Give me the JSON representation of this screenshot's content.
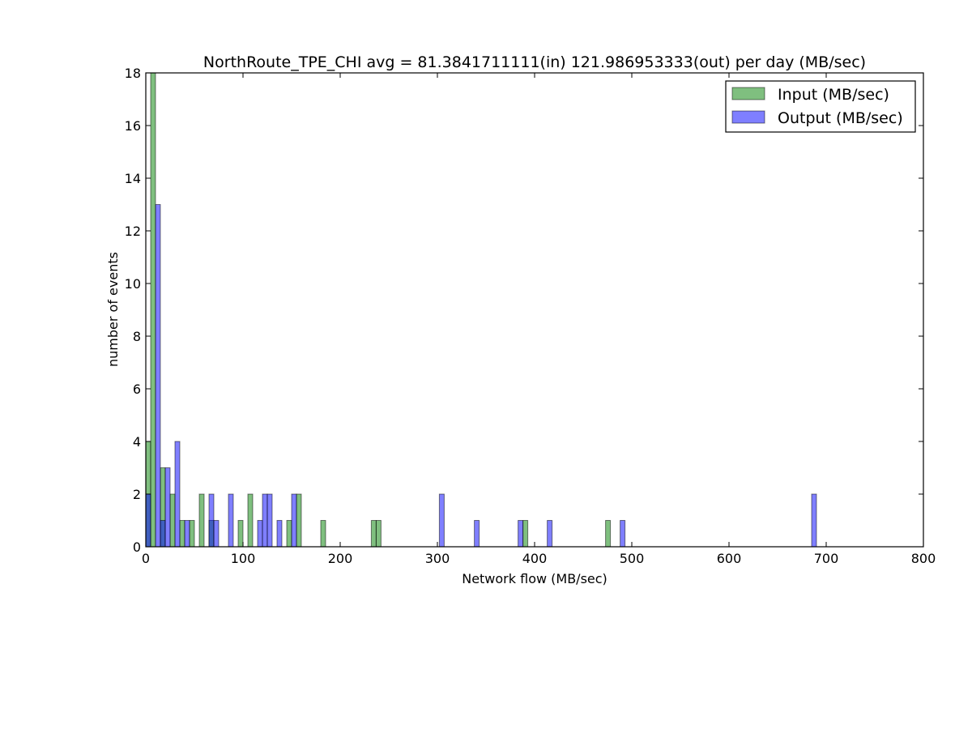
{
  "chart_data": {
    "type": "bar",
    "title": "NorthRoute_TPE_CHI avg = 81.3841711111(in) 121.986953333(out) per day (MB/sec)",
    "xlabel": "Network flow (MB/sec)",
    "ylabel": "number of events",
    "xlim": [
      0,
      800
    ],
    "ylim": [
      0,
      18
    ],
    "x_ticks": [
      "0",
      "100",
      "200",
      "300",
      "400",
      "500",
      "600",
      "700",
      "800"
    ],
    "y_ticks": [
      "0",
      "2",
      "4",
      "6",
      "8",
      "10",
      "12",
      "14",
      "16",
      "18"
    ],
    "legend_position": "top-right",
    "grid": false,
    "bin_width_mb": 5,
    "series": [
      {
        "name": "Input (MB/sec)",
        "color": "#008000",
        "opacity": 0.5,
        "bins": [
          {
            "x": 0,
            "count": 4
          },
          {
            "x": 5,
            "count": 18
          },
          {
            "x": 15,
            "count": 3
          },
          {
            "x": 25,
            "count": 2
          },
          {
            "x": 35,
            "count": 1
          },
          {
            "x": 45,
            "count": 1
          },
          {
            "x": 55,
            "count": 2
          },
          {
            "x": 65,
            "count": 1
          },
          {
            "x": 95,
            "count": 1
          },
          {
            "x": 105,
            "count": 2
          },
          {
            "x": 145,
            "count": 1
          },
          {
            "x": 155,
            "count": 2
          },
          {
            "x": 180,
            "count": 1
          },
          {
            "x": 232,
            "count": 1
          },
          {
            "x": 237,
            "count": 1
          },
          {
            "x": 388,
            "count": 1
          },
          {
            "x": 473,
            "count": 1
          }
        ]
      },
      {
        "name": "Output (MB/sec)",
        "color": "#0000ff",
        "opacity": 0.5,
        "bins": [
          {
            "x": 0,
            "count": 2
          },
          {
            "x": 10,
            "count": 13
          },
          {
            "x": 15,
            "count": 1
          },
          {
            "x": 20,
            "count": 3
          },
          {
            "x": 30,
            "count": 4
          },
          {
            "x": 40,
            "count": 1
          },
          {
            "x": 65,
            "count": 2
          },
          {
            "x": 70,
            "count": 1
          },
          {
            "x": 85,
            "count": 2
          },
          {
            "x": 115,
            "count": 1
          },
          {
            "x": 120,
            "count": 2
          },
          {
            "x": 125,
            "count": 2
          },
          {
            "x": 135,
            "count": 1
          },
          {
            "x": 150,
            "count": 2
          },
          {
            "x": 302,
            "count": 2
          },
          {
            "x": 338,
            "count": 1
          },
          {
            "x": 383,
            "count": 1
          },
          {
            "x": 413,
            "count": 1
          },
          {
            "x": 488,
            "count": 1
          },
          {
            "x": 685,
            "count": 2
          }
        ]
      }
    ]
  }
}
